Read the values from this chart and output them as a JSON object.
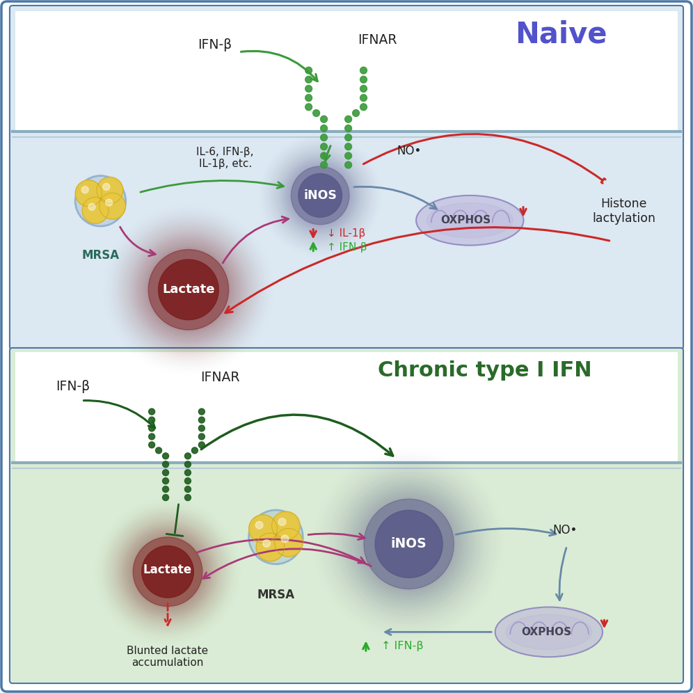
{
  "top_panel_bg": "#dce8f2",
  "bottom_panel_bg": "#daecd5",
  "outer_border_color": "#4a78a8",
  "divider_color_main": "#8aacbe",
  "divider_color_sub": "#b8ccd8",
  "outer_bg": "#ffffff",
  "naive_title": "Naive",
  "naive_title_color": "#5252cc",
  "chronic_title": "Chronic type I IFN",
  "chronic_title_color": "#2a6a2a",
  "ifn_label": "IFN-β",
  "ifnar_label": "IFNAR",
  "mrsa_label": "MRSA",
  "inos_label": "iNOS",
  "lactate_label": "Lactate",
  "no_label": "NO•",
  "oxphos_label": "OXPHOS",
  "histone_label": "Histone\nlactylation",
  "il6_label": "IL-6, IFN-β,\nIL-1β, etc.",
  "il1b_label": "↓ IL-1β",
  "ifnb_up_label": "↑ IFN-β",
  "blunted_label": "Blunted lactate\naccumulation",
  "col_green": "#3a9a3a",
  "col_dark_green": "#1e5c1e",
  "col_red": "#cc2828",
  "col_blue_gray": "#6888a8",
  "col_purple": "#aa3878",
  "inos_color": "#585888",
  "lactate_color": "#7a1c1c",
  "oxphos_color": "#b8b0d8",
  "mrsa_fill": "#e8c840",
  "mrsa_border": "#90b0cc",
  "mrsa_label_color_top": "#2a6a5a",
  "mrsa_label_color_bot": "#333333"
}
